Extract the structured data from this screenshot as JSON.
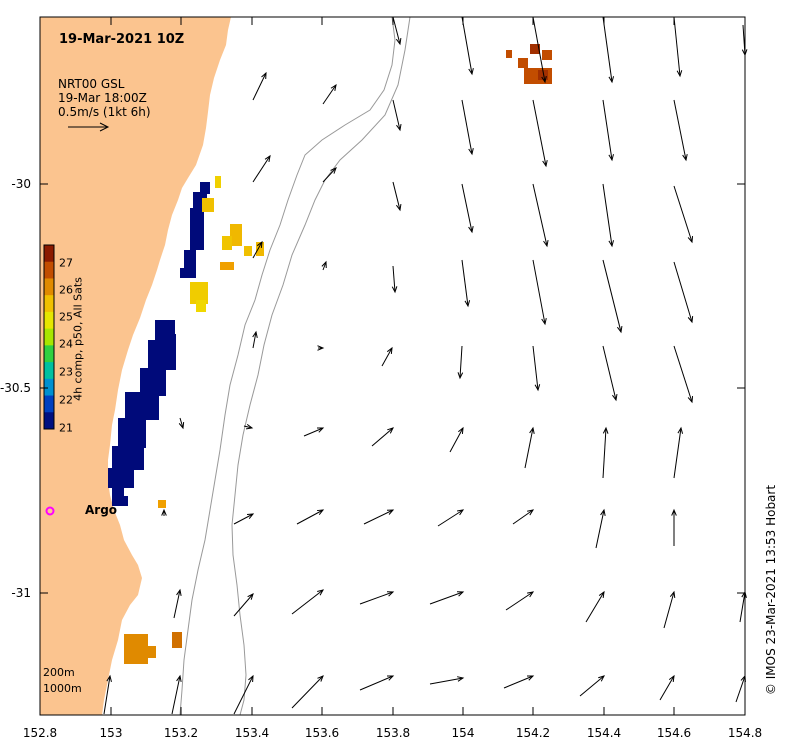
{
  "map": {
    "title": "19-Mar-2021 10Z",
    "vector_legend": {
      "line1": "NRT00 GSL",
      "line2": "19-Mar 18:00Z",
      "line3": "0.5m/s (1kt 6h)"
    },
    "x_ticks": [
      "152.8",
      "153",
      "153.2",
      "153.4",
      "153.6",
      "153.8",
      "154",
      "154.2",
      "154.4",
      "154.6",
      "154.8"
    ],
    "y_ticks": [
      "-30",
      "-30.5",
      "-31"
    ],
    "colorbar": {
      "label": "4h comp, p50, All Sats",
      "ticks": [
        "27",
        "26",
        "25",
        "24",
        "23",
        "22",
        "21"
      ],
      "colors": [
        "#8b1a00",
        "#c24d00",
        "#e08a00",
        "#f0c000",
        "#e6e600",
        "#a8e600",
        "#30d040",
        "#00c0a0",
        "#0090d0",
        "#0040c0",
        "#001080"
      ]
    },
    "argo_label": "Argo",
    "depth_legend": [
      "200m",
      "1000m"
    ],
    "credit": "© IMOS 23-Mar-2021 13:53 Hobart",
    "colors": {
      "land": "#fbc48f",
      "sst_cold": "#000a7a",
      "argo": "#ff00ff"
    }
  }
}
